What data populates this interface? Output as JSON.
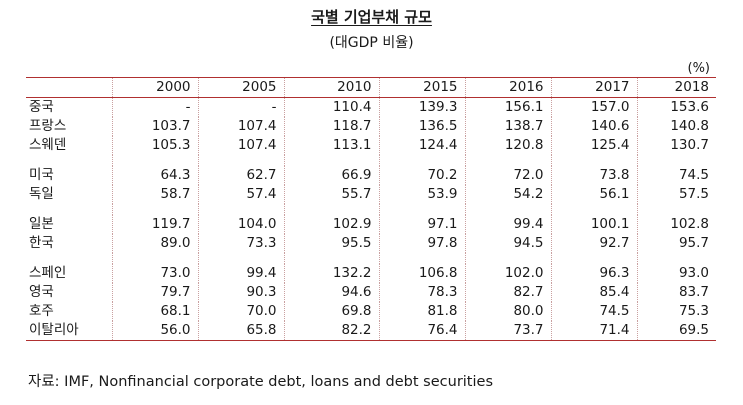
{
  "title": "국별 기업부채 규모",
  "subtitle": "(대GDP 비율)",
  "unit": "(%)",
  "table": {
    "years": [
      "2000",
      "2005",
      "2010",
      "2015",
      "2016",
      "2017",
      "2018"
    ],
    "groups": [
      [
        {
          "country": "중국",
          "values": [
            "-",
            "-",
            "110.4",
            "139.3",
            "156.1",
            "157.0",
            "153.6"
          ]
        },
        {
          "country": "프랑스",
          "values": [
            "103.7",
            "107.4",
            "118.7",
            "136.5",
            "138.7",
            "140.6",
            "140.8"
          ]
        },
        {
          "country": "스웨덴",
          "values": [
            "105.3",
            "107.4",
            "113.1",
            "124.4",
            "120.8",
            "125.4",
            "130.7"
          ]
        }
      ],
      [
        {
          "country": "미국",
          "values": [
            "64.3",
            "62.7",
            "66.9",
            "70.2",
            "72.0",
            "73.8",
            "74.5"
          ]
        },
        {
          "country": "독일",
          "values": [
            "58.7",
            "57.4",
            "55.7",
            "53.9",
            "54.2",
            "56.1",
            "57.5"
          ]
        }
      ],
      [
        {
          "country": "일본",
          "values": [
            "119.7",
            "104.0",
            "102.9",
            "97.1",
            "99.4",
            "100.1",
            "102.8"
          ]
        },
        {
          "country": "한국",
          "values": [
            "89.0",
            "73.3",
            "95.5",
            "97.8",
            "94.5",
            "92.7",
            "95.7"
          ]
        }
      ],
      [
        {
          "country": "스페인",
          "values": [
            "73.0",
            "99.4",
            "132.2",
            "106.8",
            "102.0",
            "96.3",
            "93.0"
          ]
        },
        {
          "country": "영국",
          "values": [
            "79.7",
            "90.3",
            "94.6",
            "78.3",
            "82.7",
            "85.4",
            "83.7"
          ]
        },
        {
          "country": "호주",
          "values": [
            "68.1",
            "70.0",
            "69.8",
            "81.8",
            "80.0",
            "74.5",
            "75.3"
          ]
        },
        {
          "country": "이탈리아",
          "values": [
            "56.0",
            "65.8",
            "82.2",
            "76.4",
            "73.7",
            "71.4",
            "69.5"
          ]
        }
      ]
    ]
  },
  "source": "자료: IMF, Nonfinancial corporate debt, loans and debt securities",
  "colors": {
    "rule": "#b03030",
    "dotted": "#c9a0a0"
  }
}
